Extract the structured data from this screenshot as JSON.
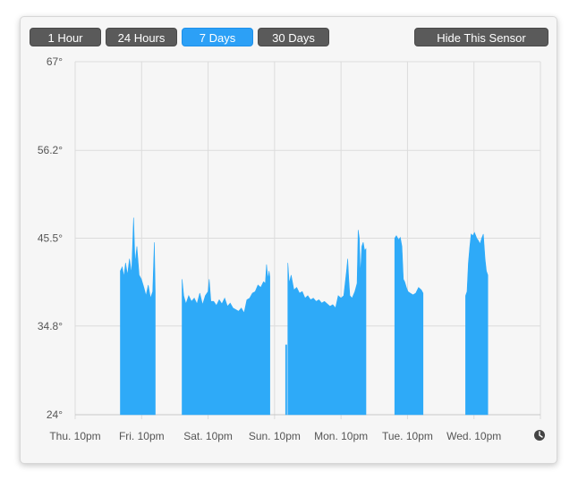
{
  "toolbar": {
    "ranges": [
      "1 Hour",
      "24 Hours",
      "7 Days",
      "30 Days"
    ],
    "selected": "7 Days",
    "hide_label": "Hide This Sensor"
  },
  "colors": {
    "fill": "#2eaaf8",
    "active_button": "#2ca0f6",
    "button": "#5a5a5a",
    "grid": "#dcdcdc"
  },
  "icons": {
    "clock": "clock-icon"
  },
  "chart_data": {
    "type": "area",
    "title": "",
    "xlabel": "",
    "ylabel": "",
    "y_ticks": [
      "67°",
      "56.2°",
      "45.5°",
      "34.8°",
      "24°"
    ],
    "y_tick_values": [
      67,
      56.2,
      45.5,
      34.8,
      24
    ],
    "ylim": [
      24,
      67
    ],
    "x_ticks": [
      "Thu. 10pm",
      "Fri. 10pm",
      "Sat. 10pm",
      "Sun. 10pm",
      "Mon. 10pm",
      "Tue. 10pm",
      "Wed. 10pm"
    ],
    "xlim_hours": [
      0,
      168
    ],
    "grid": true,
    "series": [
      {
        "segments": [
          [
            [
              16.3,
              41.5
            ],
            [
              17.0,
              42.0
            ],
            [
              17.6,
              40.8
            ],
            [
              18.2,
              42.5
            ],
            [
              18.9,
              41.0
            ],
            [
              19.6,
              43.0
            ],
            [
              20.4,
              41.2
            ],
            [
              21.1,
              48.0
            ],
            [
              21.6,
              42.5
            ],
            [
              22.3,
              44.5
            ],
            [
              23.1,
              41.0
            ],
            [
              23.9,
              40.5
            ],
            [
              24.8,
              39.5
            ],
            [
              25.6,
              38.5
            ],
            [
              26.4,
              39.8
            ],
            [
              27.2,
              38.2
            ],
            [
              28.0,
              39.0
            ],
            [
              28.6,
              45.0
            ],
            [
              28.9,
              39.0
            ]
          ],
          [
            [
              38.6,
              40.5
            ],
            [
              39.2,
              38.5
            ],
            [
              40.0,
              37.5
            ],
            [
              41.0,
              38.5
            ],
            [
              42.0,
              37.8
            ],
            [
              43.0,
              38.2
            ],
            [
              44.0,
              37.5
            ],
            [
              45.0,
              38.8
            ],
            [
              46.0,
              37.4
            ],
            [
              47.0,
              38.5
            ],
            [
              48.0,
              39.0
            ],
            [
              48.4,
              40.5
            ],
            [
              49.0,
              37.8
            ],
            [
              50.0,
              37.8
            ],
            [
              51.0,
              37.3
            ],
            [
              52.0,
              38.0
            ],
            [
              53.0,
              37.5
            ],
            [
              54.0,
              38.2
            ],
            [
              55.0,
              37.2
            ],
            [
              56.0,
              37.6
            ],
            [
              57.0,
              37.0
            ],
            [
              58.0,
              36.8
            ],
            [
              59.0,
              36.6
            ],
            [
              60.0,
              37.0
            ],
            [
              61.0,
              36.4
            ],
            [
              62.0,
              38.0
            ],
            [
              63.0,
              38.2
            ],
            [
              64.0,
              38.8
            ],
            [
              65.0,
              39.0
            ],
            [
              66.0,
              39.8
            ],
            [
              67.0,
              39.5
            ],
            [
              68.0,
              40.2
            ],
            [
              68.7,
              40.0
            ],
            [
              69.1,
              42.3
            ],
            [
              69.6,
              40.5
            ],
            [
              70.0,
              41.5
            ],
            [
              70.3,
              40.8
            ]
          ],
          [
            [
              76.0,
              32.5
            ],
            [
              76.4,
              32.5
            ]
          ],
          [
            [
              76.8,
              42.5
            ],
            [
              77.3,
              40.0
            ],
            [
              78.0,
              41.0
            ],
            [
              79.0,
              39.2
            ],
            [
              80.0,
              39.5
            ],
            [
              81.0,
              38.8
            ],
            [
              82.0,
              39.0
            ],
            [
              83.0,
              38.2
            ],
            [
              84.0,
              38.5
            ],
            [
              85.0,
              38.0
            ],
            [
              86.0,
              38.2
            ],
            [
              87.0,
              37.8
            ],
            [
              88.0,
              38.0
            ],
            [
              89.0,
              37.6
            ],
            [
              90.0,
              37.8
            ],
            [
              91.0,
              37.5
            ],
            [
              92.0,
              37.2
            ],
            [
              93.0,
              37.4
            ],
            [
              94.0,
              37.0
            ],
            [
              95.0,
              38.5
            ],
            [
              96.0,
              38.2
            ],
            [
              97.0,
              38.5
            ],
            [
              98.0,
              41.5
            ],
            [
              98.4,
              43.0
            ],
            [
              98.8,
              40.5
            ],
            [
              99.2,
              38.5
            ],
            [
              100.0,
              38.2
            ],
            [
              101.0,
              39.0
            ],
            [
              101.8,
              40.0
            ],
            [
              102.2,
              46.5
            ],
            [
              102.6,
              45.5
            ],
            [
              103.0,
              41.0
            ],
            [
              103.5,
              44.5
            ],
            [
              104.0,
              45.0
            ],
            [
              104.5,
              44.0
            ],
            [
              105.0,
              44.2
            ]
          ],
          [
            [
              115.4,
              45.5
            ],
            [
              116.0,
              45.8
            ],
            [
              116.8,
              45.3
            ],
            [
              117.4,
              45.6
            ],
            [
              118.0,
              44.5
            ],
            [
              118.5,
              40.5
            ],
            [
              119.0,
              40.2
            ],
            [
              119.6,
              39.5
            ],
            [
              120.2,
              39.0
            ],
            [
              121.0,
              38.8
            ],
            [
              122.0,
              38.6
            ],
            [
              123.0,
              38.8
            ],
            [
              124.0,
              39.5
            ],
            [
              125.0,
              39.2
            ],
            [
              125.6,
              38.8
            ]
          ],
          [
            [
              141.0,
              38.5
            ],
            [
              141.5,
              39.0
            ],
            [
              142.0,
              42.5
            ],
            [
              142.5,
              44.5
            ],
            [
              143.0,
              46.0
            ],
            [
              143.6,
              45.8
            ],
            [
              144.2,
              46.2
            ],
            [
              145.0,
              45.5
            ],
            [
              145.6,
              45.2
            ],
            [
              146.2,
              44.8
            ],
            [
              146.8,
              45.5
            ],
            [
              147.4,
              46.0
            ],
            [
              148.0,
              43.0
            ],
            [
              148.5,
              41.5
            ],
            [
              149.0,
              41.0
            ]
          ]
        ]
      }
    ]
  }
}
